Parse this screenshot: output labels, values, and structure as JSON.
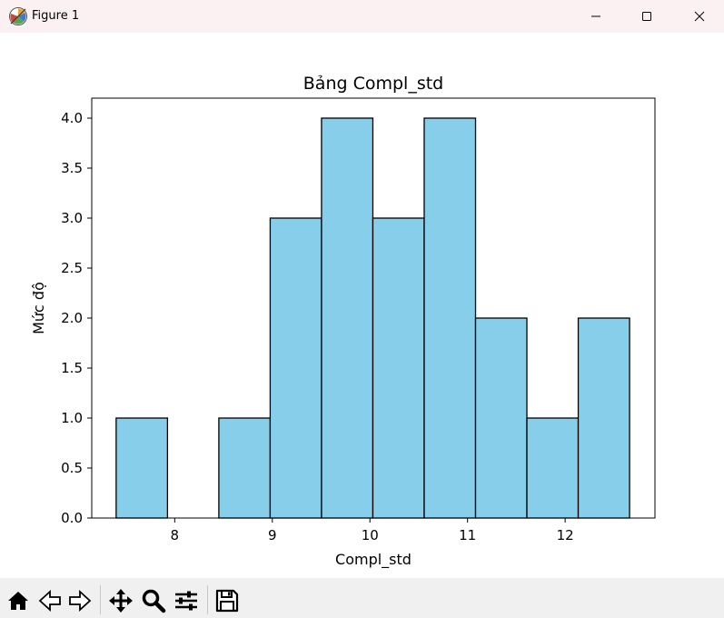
{
  "window": {
    "title": "Figure 1",
    "icons": [
      "matplotlib-icon",
      "minimize-icon",
      "maximize-icon",
      "close-icon"
    ]
  },
  "toolbar": {
    "tools": [
      "home-icon",
      "back-icon",
      "forward-icon",
      "pan-icon",
      "zoom-icon",
      "configure-subplots-icon",
      "save-icon"
    ]
  },
  "chart_data": {
    "type": "bar",
    "title": "Bảng Compl_std",
    "xlabel": "Compl_std",
    "ylabel": "Mức độ",
    "bin_edges": [
      7.4,
      7.926,
      8.452,
      8.978,
      9.504,
      10.03,
      10.556,
      11.082,
      11.608,
      12.134,
      12.66
    ],
    "values": [
      1,
      0,
      1,
      3,
      4,
      3,
      4,
      2,
      1,
      2
    ],
    "xlim": [
      7.15,
      12.92
    ],
    "ylim": [
      0,
      4.2
    ],
    "xticks": [
      8,
      9,
      10,
      11,
      12
    ],
    "xtick_labels": [
      "8",
      "9",
      "10",
      "11",
      "12"
    ],
    "yticks": [
      0.0,
      0.5,
      1.0,
      1.5,
      2.0,
      2.5,
      3.0,
      3.5,
      4.0
    ],
    "ytick_labels": [
      "0.0",
      "0.5",
      "1.0",
      "1.5",
      "2.0",
      "2.5",
      "3.0",
      "3.5",
      "4.0"
    ],
    "bar_color": "#87ceeb",
    "edge_color": "#000000",
    "grid": false,
    "legend": "none"
  }
}
